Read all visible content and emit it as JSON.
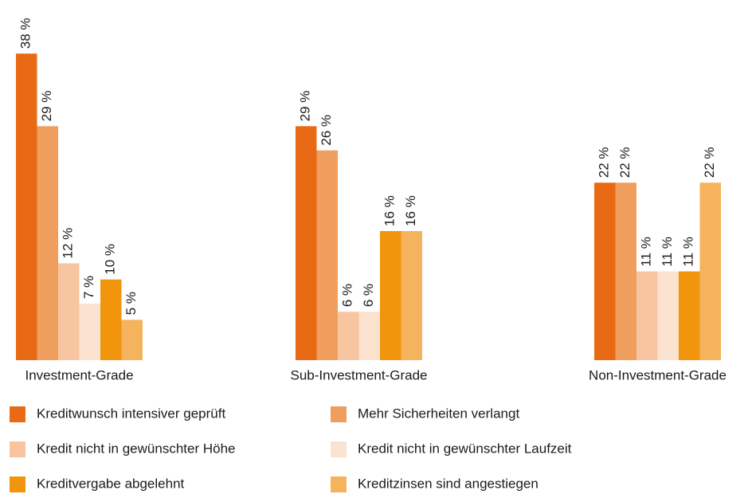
{
  "chart_data": {
    "type": "bar",
    "categories": [
      "Investment-Grade",
      "Sub-Investment-Grade",
      "Non-Investment-Grade"
    ],
    "series": [
      {
        "name": "Kreditwunsch intensiver geprüft",
        "color": "#e96a14",
        "values": [
          38,
          29,
          22
        ],
        "value_labels": [
          "38 %",
          "29 %",
          "22 %"
        ]
      },
      {
        "name": "Mehr Sicherheiten verlangt",
        "color": "#f09e5e",
        "values": [
          29,
          26,
          22
        ],
        "value_labels": [
          "29 %",
          "26 %",
          "22 %"
        ]
      },
      {
        "name": "Kredit nicht in gewünschter Höhe",
        "color": "#f7c6a1",
        "values": [
          12,
          6,
          11
        ],
        "value_labels": [
          "12 %",
          "6 %",
          "11 %"
        ]
      },
      {
        "name": "Kredit nicht in gewünschter Laufzeit",
        "color": "#fbe2cf",
        "values": [
          7,
          6,
          11
        ],
        "value_labels": [
          "7 %",
          "6 %",
          "11 %"
        ]
      },
      {
        "name": "Kreditvergabe abgelehnt",
        "color": "#f0950c",
        "values": [
          10,
          16,
          11
        ],
        "value_labels": [
          "10 %",
          "16 %",
          "11 %"
        ]
      },
      {
        "name": "Kreditzinsen sind angestiegen",
        "color": "#f6b35e",
        "values": [
          5,
          16,
          22
        ],
        "value_labels": [
          "5 %",
          "16 %",
          "22 %"
        ]
      }
    ],
    "ylim": [
      0,
      40
    ]
  }
}
